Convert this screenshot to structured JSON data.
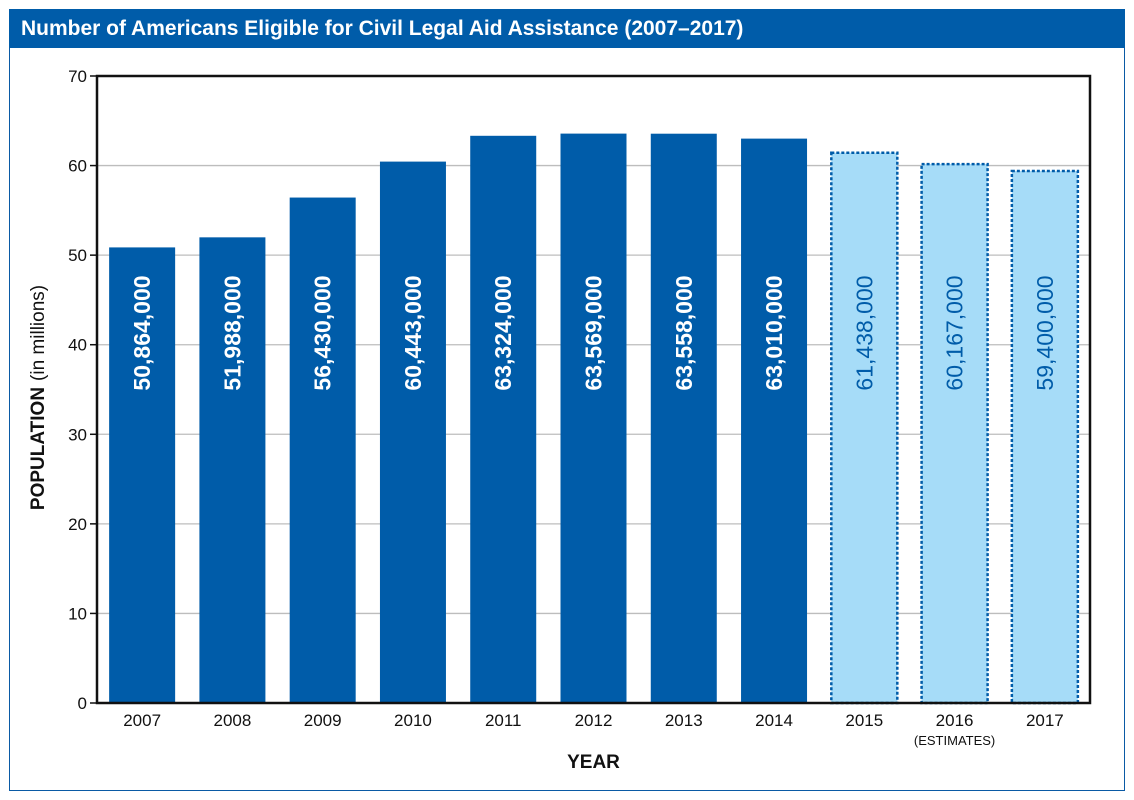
{
  "header": {
    "title": "Number of Americans Eligible for Civil Legal Aid Assistance (2007–2017)"
  },
  "chart_data": {
    "type": "bar",
    "title": "Number of Americans Eligible for Civil Legal Aid Assistance (2007–2017)",
    "xlabel": "YEAR",
    "ylabel_bold": "POPULATION",
    "ylabel_rest": "(in millions)",
    "ylim": [
      0,
      70
    ],
    "yticks": [
      0,
      10,
      20,
      30,
      40,
      50,
      60,
      70
    ],
    "grid": true,
    "categories": [
      "2007",
      "2008",
      "2009",
      "2010",
      "2011",
      "2012",
      "2013",
      "2014",
      "2015",
      "2016",
      "2017"
    ],
    "values": [
      50.864,
      51.988,
      56.43,
      60.443,
      63.324,
      63.569,
      63.558,
      63.01,
      61.438,
      60.167,
      59.4
    ],
    "value_labels": [
      "50,864,000",
      "51,988,000",
      "56,430,000",
      "60,443,000",
      "63,324,000",
      "63,569,000",
      "63,558,000",
      "63,010,000",
      "61,438,000",
      "60,167,000",
      "59,400,000"
    ],
    "estimate_note": "(ESTIMATES)",
    "estimate_categories": [
      "2015",
      "2016",
      "2017"
    ],
    "colors": {
      "actual_fill": "#005ca9",
      "estimate_fill": "#a6dcf8",
      "estimate_border": "#005ca9",
      "grid": "#bdbdbd",
      "title_bar": "#005ca9"
    }
  }
}
